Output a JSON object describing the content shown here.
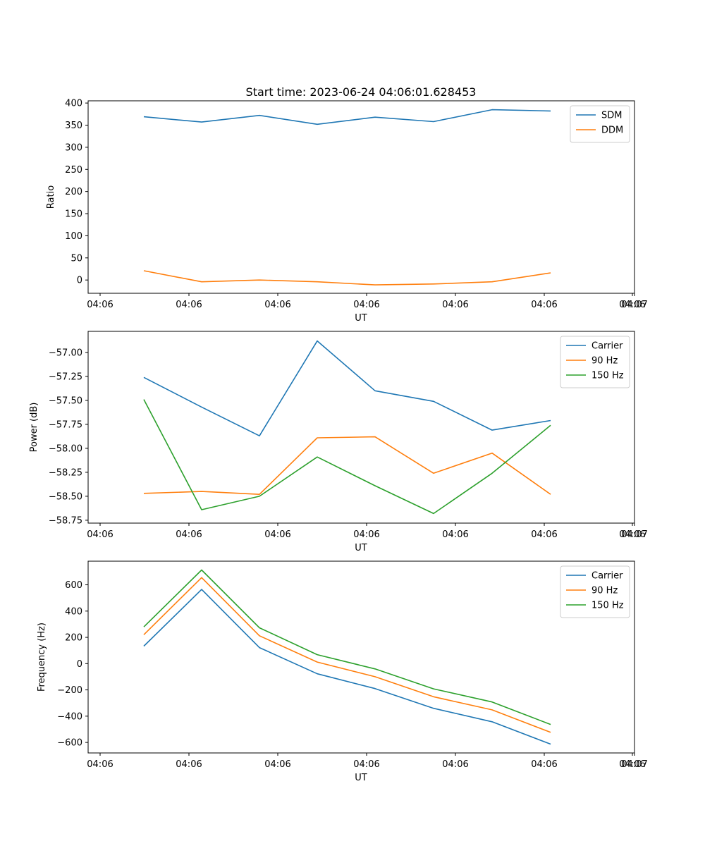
{
  "figure_title": "Start time: 2023-06-24 04:06:01.628453",
  "x_tick_labels": [
    "04:06",
    "04:06",
    "04:06",
    "04:06",
    "04:06",
    "04:06",
    "04:06",
    "04:07"
  ],
  "colors": {
    "blue": "#1f77b4",
    "orange": "#ff7f0e",
    "green": "#2ca02c"
  },
  "chart_data": [
    {
      "type": "line",
      "xlabel": "UT",
      "ylabel": "Ratio",
      "ylim": [
        -30,
        405
      ],
      "y_ticks": [
        0,
        50,
        100,
        150,
        200,
        250,
        300,
        350,
        400
      ],
      "y_tick_labels": [
        "0",
        "50",
        "100",
        "150",
        "200",
        "250",
        "300",
        "350",
        "400"
      ],
      "legend_position": "top-right",
      "grid": false,
      "x": [
        1,
        2,
        3,
        4,
        5,
        6,
        7,
        8
      ],
      "series": [
        {
          "name": "SDM",
          "color": "#1f77b4",
          "values": [
            369,
            357,
            372,
            352,
            368,
            358,
            385,
            382
          ]
        },
        {
          "name": "DDM",
          "color": "#ff7f0e",
          "values": [
            21,
            -4,
            0,
            -4,
            -11,
            -9,
            -4,
            16
          ]
        }
      ]
    },
    {
      "type": "line",
      "xlabel": "UT",
      "ylabel": "Power (dB)",
      "ylim": [
        -58.78,
        -56.78
      ],
      "y_ticks": [
        -57.0,
        -57.25,
        -57.5,
        -57.75,
        -58.0,
        -58.25,
        -58.5,
        -58.75
      ],
      "y_tick_labels": [
        "−57.00",
        "−57.25",
        "−57.50",
        "−57.75",
        "−58.00",
        "−58.25",
        "−58.50",
        "−58.75"
      ],
      "legend_position": "top-right",
      "grid": false,
      "x": [
        1,
        2,
        3,
        4,
        5,
        6,
        7,
        8
      ],
      "series": [
        {
          "name": "Carrier",
          "color": "#1f77b4",
          "values": [
            -57.26,
            -57.57,
            -57.87,
            -56.88,
            -57.4,
            -57.51,
            -57.81,
            -57.71
          ]
        },
        {
          "name": "90 Hz",
          "color": "#ff7f0e",
          "values": [
            -58.47,
            -58.45,
            -58.48,
            -57.89,
            -57.88,
            -58.26,
            -58.05,
            -58.48
          ]
        },
        {
          "name": "150 Hz",
          "color": "#2ca02c",
          "values": [
            -57.49,
            -58.64,
            -58.5,
            -58.09,
            -58.39,
            -58.68,
            -58.26,
            -57.76
          ]
        }
      ]
    },
    {
      "type": "line",
      "xlabel": "UT",
      "ylabel": "Frequency (Hz)",
      "ylim": [
        -680,
        780
      ],
      "y_ticks": [
        600,
        400,
        200,
        0,
        -200,
        -400,
        -600
      ],
      "y_tick_labels": [
        "600",
        "400",
        "200",
        "0",
        "−200",
        "−400",
        "−600"
      ],
      "legend_position": "top-right",
      "grid": false,
      "x": [
        1,
        2,
        3,
        4,
        5,
        6,
        7,
        8
      ],
      "series": [
        {
          "name": "Carrier",
          "color": "#1f77b4",
          "values": [
            133,
            565,
            122,
            -77,
            -190,
            -340,
            -443,
            -613
          ]
        },
        {
          "name": "90 Hz",
          "color": "#ff7f0e",
          "values": [
            220,
            655,
            212,
            12,
            -100,
            -252,
            -352,
            -523
          ]
        },
        {
          "name": "150 Hz",
          "color": "#2ca02c",
          "values": [
            280,
            713,
            273,
            68,
            -40,
            -192,
            -292,
            -463
          ]
        }
      ]
    }
  ]
}
